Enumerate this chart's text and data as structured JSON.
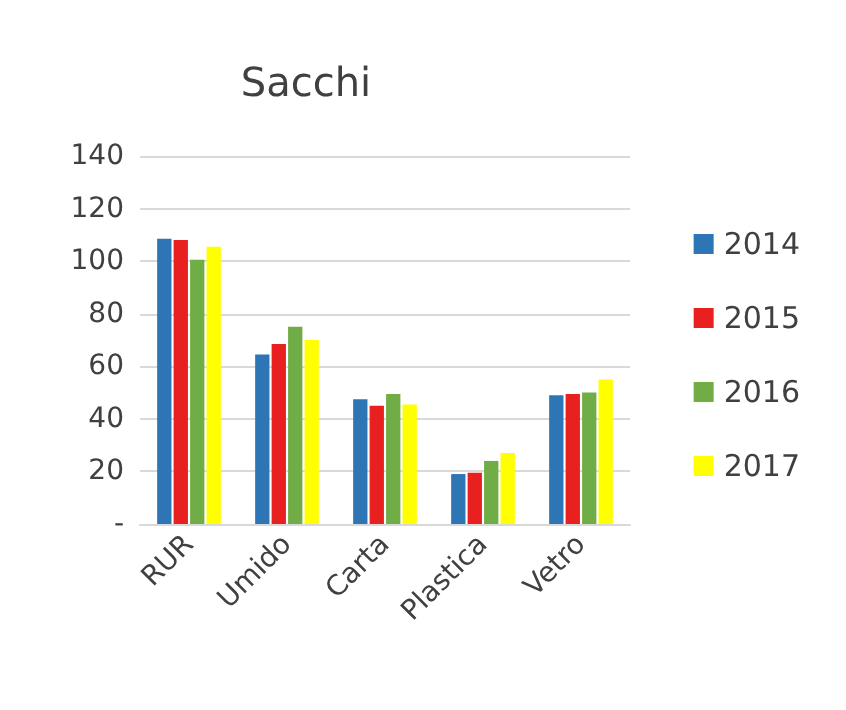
{
  "chart_data": {
    "type": "bar",
    "title": "Sacchi",
    "categories": [
      "RUR",
      "Umido",
      "Carta",
      "Plastica",
      "Vetro"
    ],
    "series": [
      {
        "name": "2014",
        "color": "#2e75b6",
        "values": [
          108.5,
          64.5,
          47.5,
          19,
          49
        ]
      },
      {
        "name": "2015",
        "color": "#e8201f",
        "values": [
          108,
          68.5,
          45,
          19.5,
          49.5
        ]
      },
      {
        "name": "2016",
        "color": "#70ad47",
        "values": [
          100.5,
          75,
          49.5,
          24,
          50
        ]
      },
      {
        "name": "2017",
        "color": "#ffff00",
        "values": [
          105.5,
          70,
          45.5,
          27,
          55
        ]
      }
    ],
    "ylim": [
      0,
      140
    ],
    "yticks": [
      {
        "value": 0,
        "label": "-"
      },
      20,
      40,
      60,
      80,
      100,
      120,
      140
    ],
    "grid": "y",
    "legend": "right"
  }
}
